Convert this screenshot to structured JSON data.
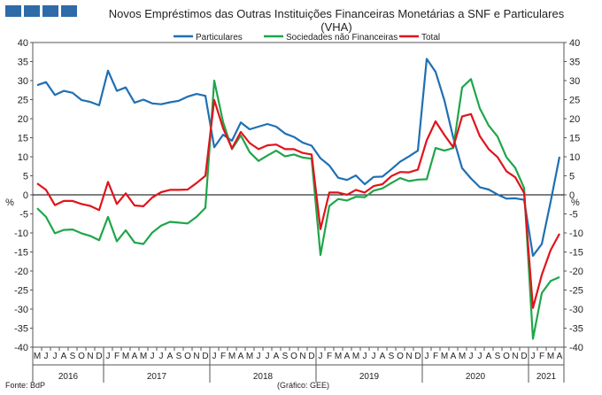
{
  "header": {
    "logo_icon": "bank-of-portugal-logo-icon",
    "title_line1": "Novos Empréstimos das Outras Instituições Financeiras Monetárias a SNF e Particulares",
    "title_line2": "(VHA)"
  },
  "footer": {
    "source": "Fonte: BdP",
    "note": "(Gráfico: GEE)"
  },
  "chart_data": {
    "type": "line",
    "title": "Novos Empréstimos das Outras Instituições Financeiras Monetárias a SNF e Particulares (VHA)",
    "ylabel_left": "%",
    "ylabel_right": "%",
    "ylim": [
      -40,
      40
    ],
    "yticks": [
      -40,
      -35,
      -30,
      -25,
      -20,
      -15,
      -10,
      -5,
      0,
      5,
      10,
      15,
      20,
      25,
      30,
      35,
      40
    ],
    "grid": false,
    "legend_position": "top",
    "month_labels": [
      "M",
      "J",
      "J",
      "A",
      "S",
      "O",
      "N",
      "D",
      "J",
      "F",
      "M",
      "A",
      "M",
      "J",
      "J",
      "A",
      "S",
      "O",
      "N",
      "D",
      "J",
      "F",
      "M",
      "A",
      "M",
      "J",
      "J",
      "A",
      "S",
      "O",
      "N",
      "D",
      "J",
      "F",
      "M",
      "A",
      "M",
      "J",
      "J",
      "A",
      "S",
      "O",
      "N",
      "D",
      "J",
      "F",
      "M",
      "A",
      "M",
      "J",
      "J",
      "A",
      "S",
      "O",
      "N",
      "D",
      "J",
      "F",
      "M",
      "A"
    ],
    "years": [
      {
        "label": "2016",
        "start": 0,
        "end": 8
      },
      {
        "label": "2017",
        "start": 8,
        "end": 20
      },
      {
        "label": "2018",
        "start": 20,
        "end": 32
      },
      {
        "label": "2019",
        "start": 32,
        "end": 44
      },
      {
        "label": "2020",
        "start": 44,
        "end": 56
      },
      {
        "label": "2021",
        "start": 56,
        "end": 60
      }
    ],
    "series": [
      {
        "name": "Particulares",
        "color": "#1f6fb4",
        "values": [
          28.8,
          29.6,
          26.2,
          27.3,
          26.8,
          24.9,
          24.4,
          23.5,
          32.6,
          27.3,
          28.2,
          24.2,
          25.0,
          24.0,
          23.8,
          24.3,
          24.7,
          25.8,
          26.5,
          26.0,
          12.5,
          15.8,
          14.2,
          19.0,
          17.2,
          17.9,
          18.6,
          17.9,
          16.1,
          15.2,
          13.7,
          12.9,
          9.6,
          7.7,
          4.5,
          3.9,
          5.1,
          2.8,
          4.7,
          4.8,
          6.7,
          8.7,
          10.1,
          11.6,
          35.7,
          32.3,
          24.8,
          15.0,
          7.0,
          4.3,
          2.0,
          1.4,
          0.1,
          -1.0,
          -0.9,
          -1.3,
          -16.0,
          -12.9,
          -1.8,
          10.0
        ]
      },
      {
        "name": "Sociedades não Financeiras",
        "color": "#1fa64a",
        "values": [
          -3.5,
          -5.8,
          -10.1,
          -9.2,
          -9.1,
          -10.1,
          -10.8,
          -11.9,
          -5.8,
          -12.2,
          -9.3,
          -12.5,
          -12.9,
          -9.9,
          -8.1,
          -7.1,
          -7.3,
          -7.5,
          -5.8,
          -3.4,
          30.0,
          19.1,
          12.0,
          15.6,
          11.2,
          8.9,
          10.3,
          11.6,
          10.1,
          10.6,
          9.8,
          9.5,
          -15.8,
          -2.9,
          -1.1,
          -1.5,
          -0.5,
          -0.6,
          1.1,
          1.7,
          3.1,
          4.4,
          3.6,
          4.0,
          4.1,
          12.3,
          11.6,
          12.3,
          28.2,
          30.4,
          22.7,
          18.2,
          15.3,
          9.9,
          7.1,
          1.8,
          -37.8,
          -25.8,
          -22.6,
          -21.6
        ]
      },
      {
        "name": "Total",
        "color": "#e0141c",
        "values": [
          3.0,
          1.3,
          -2.7,
          -1.6,
          -1.6,
          -2.4,
          -2.9,
          -4.0,
          3.4,
          -2.4,
          0.4,
          -2.8,
          -3.0,
          -0.7,
          0.7,
          1.3,
          1.3,
          1.4,
          3.1,
          5.0,
          24.9,
          17.5,
          12.2,
          16.5,
          13.6,
          12.0,
          13.0,
          13.2,
          12.0,
          12.0,
          11.0,
          10.6,
          -9.0,
          0.6,
          0.6,
          0.0,
          1.3,
          0.6,
          2.3,
          2.8,
          4.9,
          6.0,
          5.9,
          6.6,
          14.3,
          19.3,
          15.7,
          12.5,
          20.6,
          21.2,
          15.4,
          12.0,
          9.9,
          6.2,
          4.6,
          0.5,
          -29.7,
          -21.0,
          -14.5,
          -10.2
        ]
      }
    ]
  }
}
